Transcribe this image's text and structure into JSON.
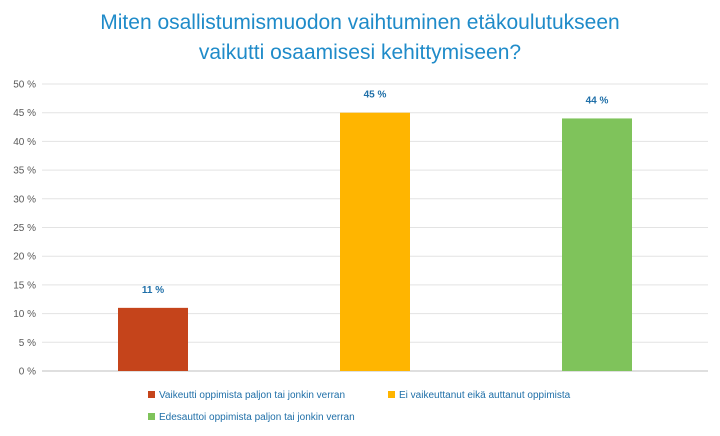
{
  "title_lines": [
    "Miten osallistumismuodon vaihtuminen etäkoulutukseen",
    "vaikutti osaamisesi kehittymiseen?"
  ],
  "chart_data": {
    "type": "bar",
    "categories": [
      "Vaikeutti oppimista paljon tai jonkin verran",
      "Ei vaikeuttanut eikä auttanut oppimista",
      "Edesauttoi oppimista paljon tai jonkin verran"
    ],
    "values": [
      11,
      45,
      44
    ],
    "data_labels": [
      "11 %",
      "45 %",
      "44 %"
    ],
    "colors": [
      "#c5441b",
      "#ffb500",
      "#7fc35b"
    ],
    "ylim": [
      0,
      50
    ],
    "yticks": [
      0,
      5,
      10,
      15,
      20,
      25,
      30,
      35,
      40,
      45,
      50
    ],
    "ytick_labels": [
      "0 %",
      "5 %",
      "10 %",
      "15 %",
      "20 %",
      "25 %",
      "30 %",
      "35 %",
      "40 %",
      "45 %",
      "50 %"
    ],
    "grid": true,
    "legend_position": "bottom"
  }
}
